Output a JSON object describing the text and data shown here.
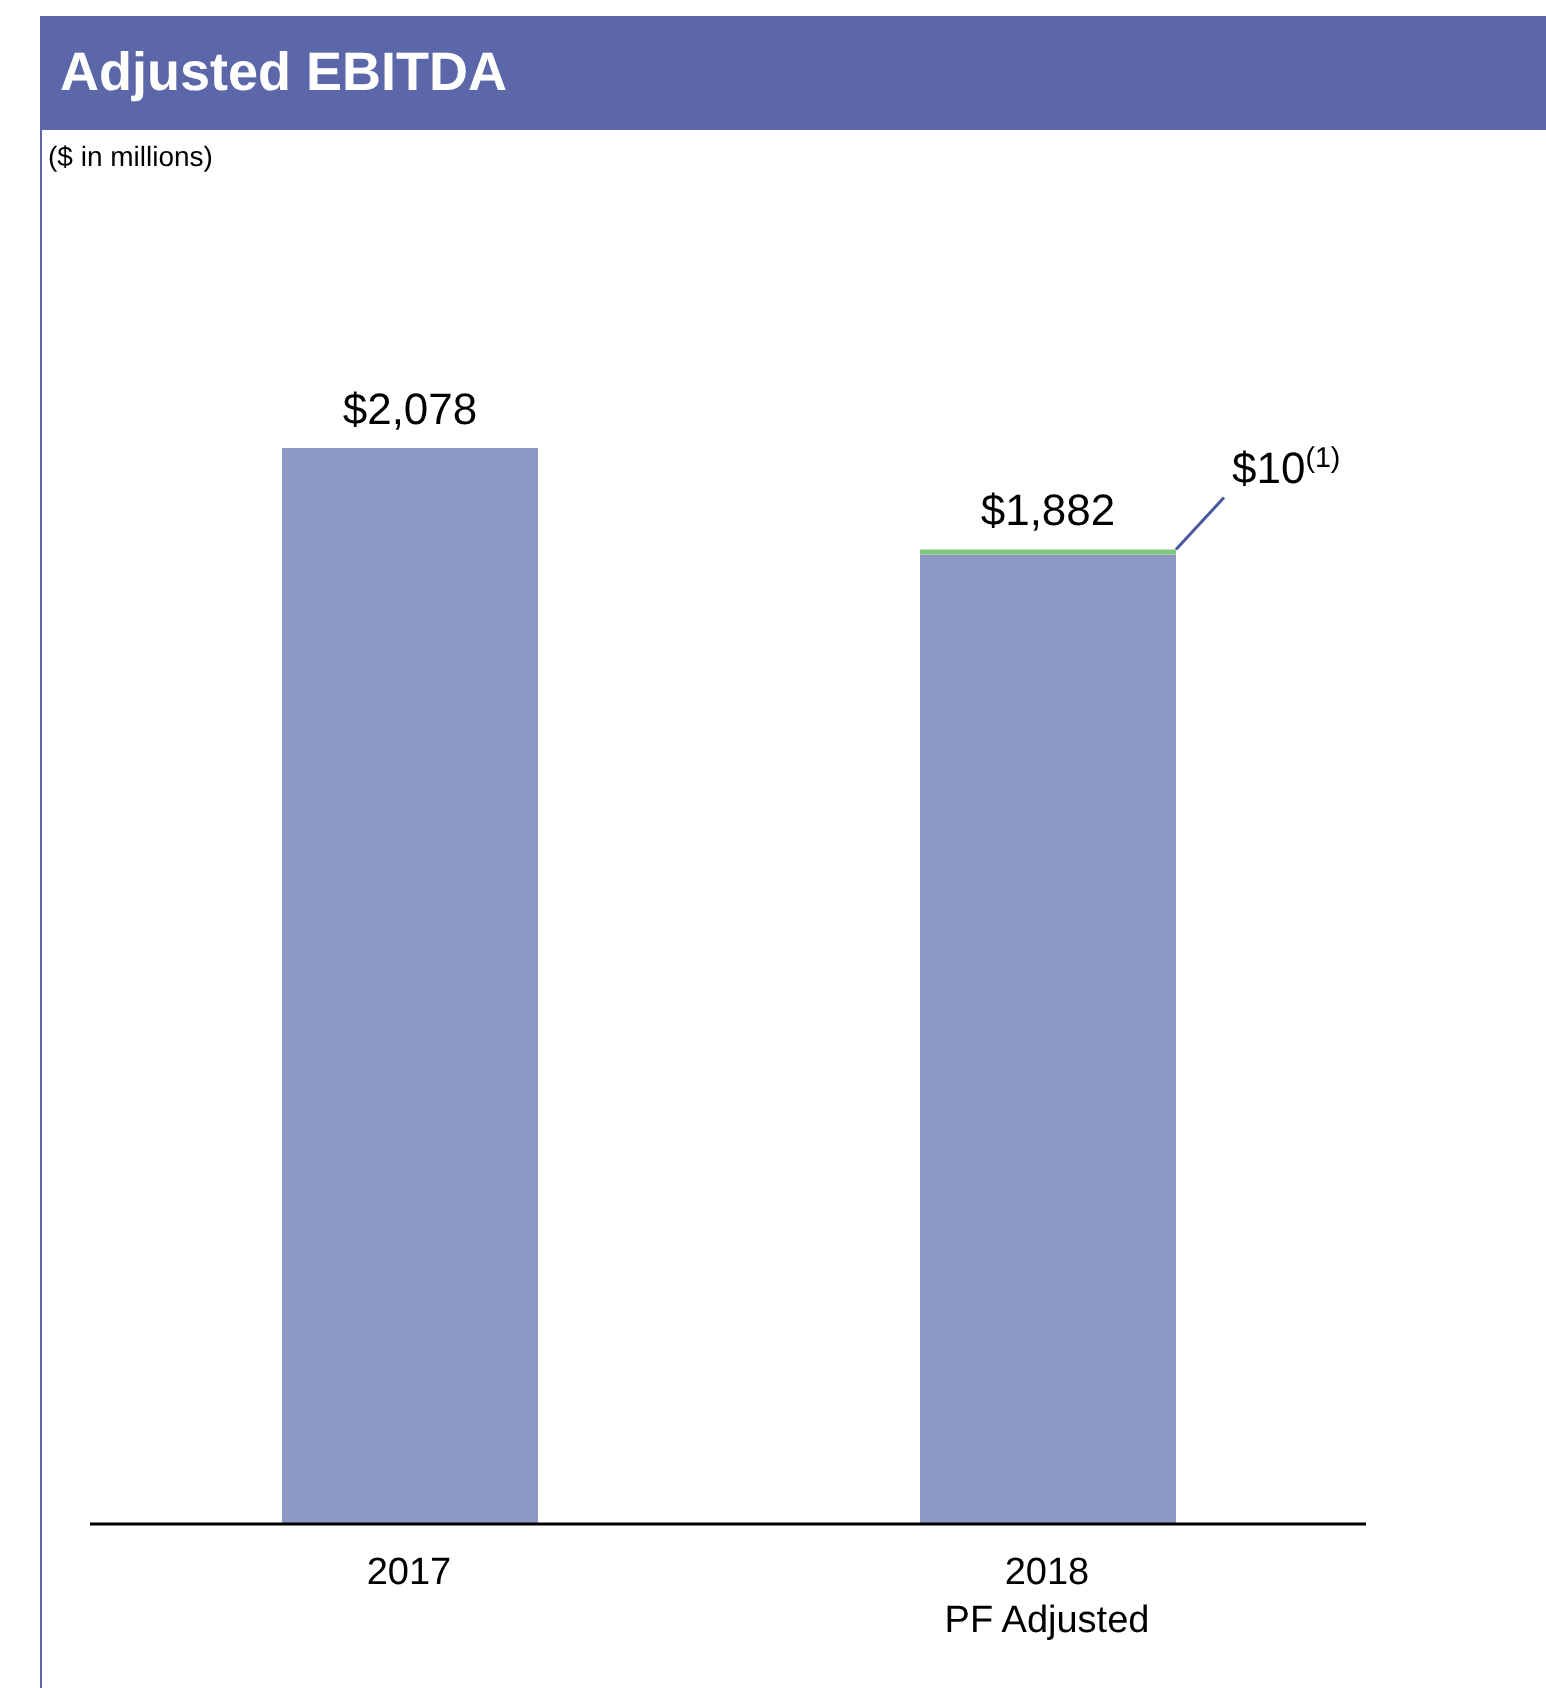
{
  "chart_data": {
    "type": "bar",
    "title": "Adjusted EBITDA",
    "subtitle": "($ in millions)",
    "categories": [
      "2017",
      "2018\nPF Adjusted"
    ],
    "stacked": true,
    "series": [
      {
        "color": "#8e98c4",
        "values": [
          2078,
          1872
        ]
      },
      {
        "color": "#7ec87e",
        "values": [
          null,
          10
        ],
        "value_labels": [
          null,
          "$10$^{(1)}$"
        ]
      }
    ],
    "totals": [
      "$2,078",
      "$1,882"
    ]
  }
}
